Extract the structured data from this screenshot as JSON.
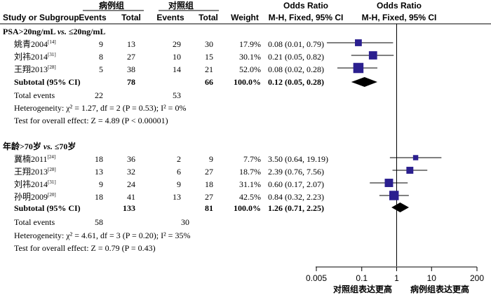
{
  "header": {
    "group1": "病例组",
    "group2": "对照组",
    "study_col": "Study or Subgroup",
    "events": "Events",
    "total": "Total",
    "weight": "Weight",
    "or_title": "Odds Ratio",
    "or_method": "M-H, Fixed, 95% CI"
  },
  "subgroups": [
    {
      "title_parts": [
        "PSA>20ng/mL ",
        "vs.",
        " ≤20ng/mL"
      ],
      "rows": [
        {
          "study": "姚青2004",
          "ref": "[14]",
          "e1": "9",
          "t1": "13",
          "e2": "29",
          "t2": "30",
          "weight": "17.9%",
          "ci_text": "0.08 (0.01, 0.79)"
        },
        {
          "study": "刘祎2014",
          "ref": "[31]",
          "e1": "8",
          "t1": "27",
          "e2": "10",
          "t2": "15",
          "weight": "30.1%",
          "ci_text": "0.21 (0.05, 0.82)"
        },
        {
          "study": "王翔2013",
          "ref": "[28]",
          "e1": "5",
          "t1": "38",
          "e2": "14",
          "t2": "21",
          "weight": "52.0%",
          "ci_text": "0.08 (0.02, 0.28)"
        }
      ],
      "subtotal": {
        "label": "Subtotal (95% CI)",
        "t1": "78",
        "t2": "66",
        "weight": "100.0%",
        "ci_text": "0.12 (0.05, 0.28)"
      },
      "total_events": {
        "label": "Total events",
        "e1": "22",
        "e2": "53"
      },
      "heterogeneity": "Heterogeneity: χ² = 1.27, df = 2 (P = 0.53); I² = 0%",
      "overall": "Test for overall effect: Z = 4.89 (P < 0.00001)"
    },
    {
      "title_parts": [
        "年龄>70岁 ",
        "vs.",
        " ≤70岁"
      ],
      "rows": [
        {
          "study": "冀楠2011",
          "ref": "[24]",
          "e1": "18",
          "t1": "36",
          "e2": "2",
          "t2": "9",
          "weight": "7.7%",
          "ci_text": "3.50 (0.64, 19.19)"
        },
        {
          "study": "王翔2013",
          "ref": "[28]",
          "e1": "13",
          "t1": "32",
          "e2": "6",
          "t2": "27",
          "weight": "18.7%",
          "ci_text": "2.39 (0.76, 7.56)"
        },
        {
          "study": "刘祎2014",
          "ref": "[31]",
          "e1": "9",
          "t1": "24",
          "e2": "9",
          "t2": "18",
          "weight": "31.1%",
          "ci_text": "0.60 (0.17, 2.07)"
        },
        {
          "study": "孙明2009",
          "ref": "[20]",
          "e1": "18",
          "t1": "41",
          "e2": "13",
          "t2": "27",
          "weight": "42.5%",
          "ci_text": "0.84 (0.32, 2.23)"
        }
      ],
      "subtotal": {
        "label": "Subtotal (95% CI)",
        "t1": "133",
        "t2": "81",
        "weight": "100.0%",
        "ci_text": "1.26 (0.71, 2.25)"
      },
      "total_events": {
        "label": "Total events",
        "e1": "58",
        "e2": "30"
      },
      "heterogeneity": "Heterogeneity: χ² = 4.61, df = 3 (P = 0.20); I² = 35%",
      "overall": "Test for overall effect: Z = 0.79 (P = 0.43)"
    }
  ],
  "axis": {
    "ticks": [
      "0.005",
      "0.1",
      "1",
      "10",
      "200"
    ],
    "left_label": "对照组表达更高",
    "right_label": "病例组表达更高"
  },
  "colors": {
    "marker": "#2b1f8f",
    "diamond": "#000000",
    "line": "#000000"
  },
  "chart_data": {
    "type": "forest",
    "scale": "log",
    "xlim": [
      0.005,
      200
    ],
    "xticks": [
      0.005,
      0.1,
      1,
      10,
      200
    ],
    "reference_line": 1,
    "subgroups": [
      {
        "studies": [
          {
            "or": 0.08,
            "lower": 0.01,
            "upper": 0.79,
            "weight": 17.9
          },
          {
            "or": 0.21,
            "lower": 0.05,
            "upper": 0.82,
            "weight": 30.1
          },
          {
            "or": 0.08,
            "lower": 0.02,
            "upper": 0.28,
            "weight": 52.0
          }
        ],
        "subtotal": {
          "or": 0.12,
          "lower": 0.05,
          "upper": 0.28
        }
      },
      {
        "studies": [
          {
            "or": 3.5,
            "lower": 0.64,
            "upper": 19.19,
            "weight": 7.7
          },
          {
            "or": 2.39,
            "lower": 0.76,
            "upper": 7.56,
            "weight": 18.7
          },
          {
            "or": 0.6,
            "lower": 0.17,
            "upper": 2.07,
            "weight": 31.1
          },
          {
            "or": 0.84,
            "lower": 0.32,
            "upper": 2.23,
            "weight": 42.5
          }
        ],
        "subtotal": {
          "or": 1.26,
          "lower": 0.71,
          "upper": 2.25
        }
      }
    ]
  }
}
